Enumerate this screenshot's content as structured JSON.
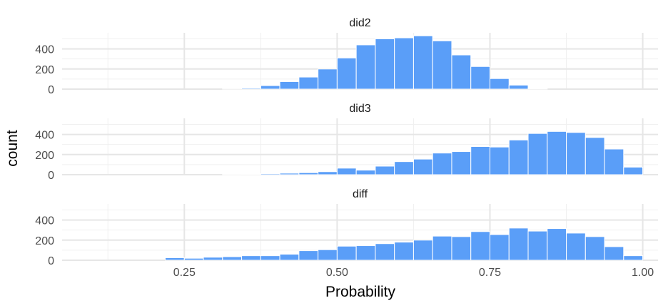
{
  "chart_data": {
    "type": "bar",
    "xlabel": "Probability",
    "ylabel": "count",
    "xlim": [
      0.05,
      1.025
    ],
    "ylim": [
      0,
      560
    ],
    "x_ticks": [
      "0.25",
      "0.50",
      "0.75",
      "1.00"
    ],
    "y_ticks": [
      "0",
      "200",
      "400"
    ],
    "bin_width": 0.03125,
    "bar_color": "#5A9EF8",
    "grid": true,
    "bin_starts": [
      0.0625,
      0.09375,
      0.125,
      0.15625,
      0.1875,
      0.21875,
      0.25,
      0.28125,
      0.3125,
      0.34375,
      0.375,
      0.40625,
      0.4375,
      0.46875,
      0.5,
      0.53125,
      0.5625,
      0.59375,
      0.625,
      0.65625,
      0.6875,
      0.71875,
      0.75,
      0.78125,
      0.8125,
      0.84375,
      0.875,
      0.90625,
      0.9375,
      0.96875,
      1.0
    ],
    "panels": [
      {
        "strip": "did2",
        "values": [
          0,
          0,
          0,
          0,
          0,
          0,
          0,
          0,
          2,
          10,
          35,
          75,
          120,
          200,
          310,
          440,
          500,
          510,
          530,
          480,
          340,
          225,
          105,
          40,
          5,
          0,
          0,
          0,
          0,
          0,
          0
        ]
      },
      {
        "strip": "did3",
        "values": [
          0,
          0,
          0,
          0,
          0,
          0,
          0,
          0,
          3,
          6,
          10,
          15,
          20,
          30,
          65,
          45,
          85,
          130,
          155,
          215,
          230,
          280,
          275,
          345,
          410,
          430,
          420,
          370,
          255,
          75,
          0
        ]
      },
      {
        "strip": "diff",
        "values": [
          0,
          0,
          0,
          0,
          0,
          25,
          20,
          30,
          35,
          45,
          45,
          60,
          95,
          105,
          140,
          145,
          165,
          180,
          200,
          240,
          235,
          285,
          255,
          320,
          290,
          315,
          270,
          235,
          135,
          45,
          0
        ]
      }
    ]
  }
}
